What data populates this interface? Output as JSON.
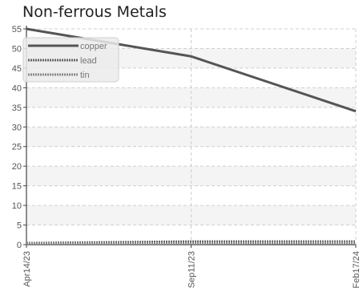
{
  "chart_data": {
    "type": "line",
    "title": "Non-ferrous Metals",
    "xlabel": "",
    "ylabel": "",
    "x": [
      "Apr14/23",
      "Sep11/23",
      "Feb17/24"
    ],
    "x_ticks": [
      "Apr14/23",
      "Sep11/23",
      "Feb17/24"
    ],
    "y_ticks": [
      0,
      5,
      10,
      15,
      20,
      25,
      30,
      35,
      40,
      45,
      50,
      55
    ],
    "ylim": [
      0,
      55
    ],
    "grid": true,
    "legend_position": "top-left",
    "series": [
      {
        "name": "copper",
        "values": [
          55,
          48,
          34
        ],
        "color": "#555555",
        "style": "solid"
      },
      {
        "name": "lead",
        "values": [
          0.4,
          0.8,
          0.8
        ],
        "color": "#666666",
        "style": "dotted"
      },
      {
        "name": "tin",
        "values": [
          0.3,
          0.3,
          0.5
        ],
        "color": "#888888",
        "style": "dotted"
      }
    ]
  }
}
